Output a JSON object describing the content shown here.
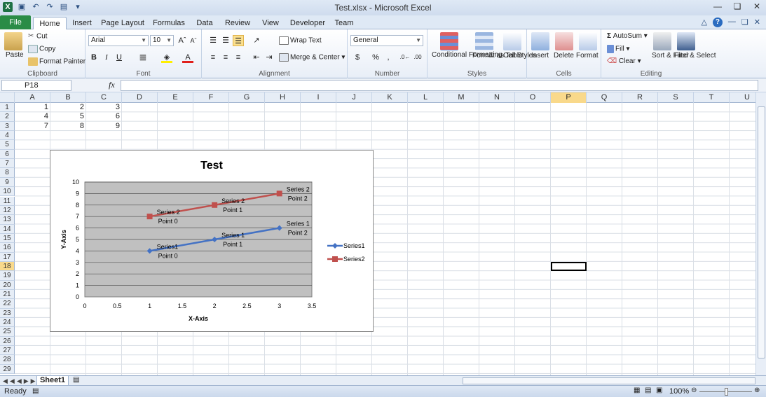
{
  "window": {
    "title": "Test.xlsx - Microsoft Excel"
  },
  "tabs": [
    "File",
    "Home",
    "Insert",
    "Page Layout",
    "Formulas",
    "Data",
    "Review",
    "View",
    "Developer",
    "Team"
  ],
  "ribbon": {
    "clipboard": {
      "label": "Clipboard",
      "paste": "Paste",
      "cut": "Cut",
      "copy": "Copy",
      "format_painter": "Format Painter"
    },
    "font": {
      "label": "Font",
      "name": "Arial",
      "size": "10"
    },
    "alignment": {
      "label": "Alignment",
      "wrap": "Wrap Text",
      "merge": "Merge & Center"
    },
    "number": {
      "label": "Number",
      "format": "General",
      "currency": "$",
      "percent": "%",
      "comma": ","
    },
    "styles": {
      "label": "Styles",
      "cond": "Conditional Formatting",
      "table": "Format as Table",
      "cell": "Cell Styles"
    },
    "cells": {
      "label": "Cells",
      "insert": "Insert",
      "delete": "Delete",
      "format": "Format"
    },
    "editing": {
      "label": "Editing",
      "autosum": "AutoSum",
      "fill": "Fill",
      "clear": "Clear",
      "sort": "Sort & Filter",
      "find": "Find & Select"
    }
  },
  "formula_bar": {
    "name_box": "P18",
    "fx": "fx",
    "value": ""
  },
  "columns": [
    "A",
    "B",
    "C",
    "D",
    "E",
    "F",
    "G",
    "H",
    "I",
    "J",
    "K",
    "L",
    "M",
    "N",
    "O",
    "P",
    "Q",
    "R",
    "S",
    "T",
    "U"
  ],
  "selected_column": "P",
  "selected_row": "18",
  "rows": [
    "1",
    "2",
    "3",
    "4",
    "5",
    "6",
    "7",
    "8",
    "9",
    "10",
    "11",
    "12",
    "13",
    "14",
    "15",
    "16",
    "17",
    "18",
    "19",
    "20",
    "21",
    "22",
    "23",
    "24",
    "25",
    "26",
    "27",
    "28",
    "29"
  ],
  "cells": [
    {
      "ref": "A1",
      "v": "1"
    },
    {
      "ref": "B1",
      "v": "2"
    },
    {
      "ref": "C1",
      "v": "3"
    },
    {
      "ref": "A2",
      "v": "4"
    },
    {
      "ref": "B2",
      "v": "5"
    },
    {
      "ref": "C2",
      "v": "6"
    },
    {
      "ref": "A3",
      "v": "7"
    },
    {
      "ref": "B3",
      "v": "8"
    },
    {
      "ref": "C3",
      "v": "9"
    }
  ],
  "sheet": {
    "name": "Sheet1"
  },
  "status": {
    "ready": "Ready",
    "zoom": "100%"
  },
  "colors": {
    "series1": "#4472c4",
    "series2": "#c0504d",
    "plot_bg": "#c0c0c0"
  },
  "chart_data": {
    "type": "line",
    "title": "Test",
    "xlabel": "X-Axis",
    "ylabel": "Y-Axis",
    "xlim": [
      0,
      3.5
    ],
    "ylim": [
      0,
      10
    ],
    "x_ticks": [
      "0",
      "0.5",
      "1",
      "1.5",
      "2",
      "2.5",
      "3",
      "3.5"
    ],
    "y_ticks": [
      "0",
      "1",
      "2",
      "3",
      "4",
      "5",
      "6",
      "7",
      "8",
      "9",
      "10"
    ],
    "grid": true,
    "legend_position": "right",
    "series": [
      {
        "name": "Series1",
        "x": [
          1,
          2,
          3
        ],
        "y": [
          4,
          5,
          6
        ],
        "color": "#4472c4",
        "marker": "diamond",
        "labels": [
          [
            "Series1",
            "Point 0"
          ],
          [
            "Series 1",
            "Point 1"
          ],
          [
            "Series 1",
            "Point 2"
          ]
        ]
      },
      {
        "name": "Series2",
        "x": [
          1,
          2,
          3
        ],
        "y": [
          7,
          8,
          9
        ],
        "color": "#c0504d",
        "marker": "square",
        "labels": [
          [
            "Series 2",
            "Point 0"
          ],
          [
            "Series 2",
            "Point 1"
          ],
          [
            "Series 2",
            "Point 2"
          ]
        ]
      }
    ]
  }
}
